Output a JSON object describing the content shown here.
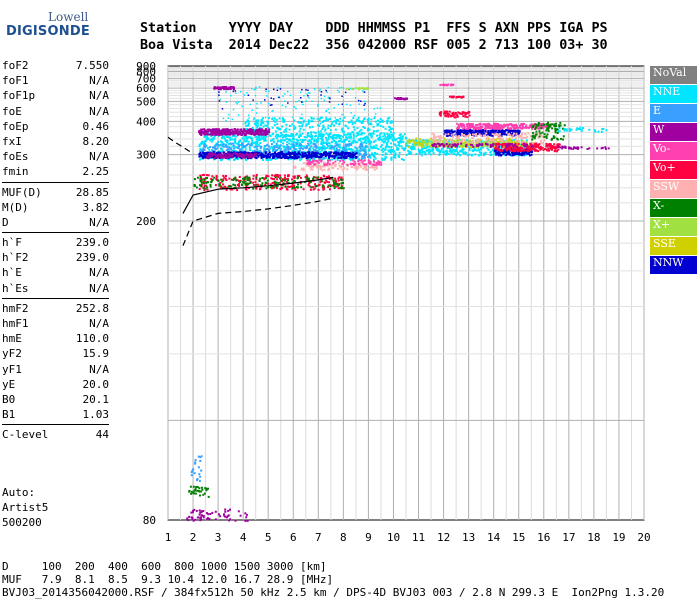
{
  "logo": {
    "line1": "Lowell",
    "line2": "DIGISONDE"
  },
  "header": {
    "line1": "Station    YYYY DAY    DDD HHMMSS P1  FFS S AXN PPS IGA PS",
    "line2": "Boa Vista  2014 Dec22  356 042000 RSF 005 2 713 100 03+ 30"
  },
  "params": {
    "group1": [
      {
        "name": "foF2",
        "value": "7.550"
      },
      {
        "name": "foF1",
        "value": "N/A"
      },
      {
        "name": "foF1p",
        "value": "N/A"
      },
      {
        "name": "foE",
        "value": "N/A"
      },
      {
        "name": "foEp",
        "value": "0.46"
      },
      {
        "name": "fxI",
        "value": "8.20"
      },
      {
        "name": "foEs",
        "value": "N/A"
      },
      {
        "name": "fmin",
        "value": "2.25"
      }
    ],
    "group2": [
      {
        "name": "MUF(D)",
        "value": "28.85"
      },
      {
        "name": "M(D)",
        "value": "3.82"
      },
      {
        "name": "D",
        "value": "N/A"
      }
    ],
    "group3": [
      {
        "name": "h`F",
        "value": "239.0"
      },
      {
        "name": "h`F2",
        "value": "239.0"
      },
      {
        "name": "h`E",
        "value": "N/A"
      },
      {
        "name": "h`Es",
        "value": "N/A"
      }
    ],
    "group4": [
      {
        "name": "hmF2",
        "value": "252.8"
      },
      {
        "name": "hmF1",
        "value": "N/A"
      },
      {
        "name": "hmE",
        "value": "110.0"
      },
      {
        "name": "yF2",
        "value": "15.9"
      },
      {
        "name": "yF1",
        "value": "N/A"
      },
      {
        "name": "yE",
        "value": "20.0"
      },
      {
        "name": "B0",
        "value": "20.1"
      },
      {
        "name": "B1",
        "value": "1.03"
      }
    ],
    "group5": [
      {
        "name": "C-level",
        "value": "44"
      }
    ]
  },
  "auto": {
    "line1": "Auto:",
    "line2": "Artist5",
    "line3": "500200"
  },
  "legend": [
    {
      "label": "NoVal",
      "color": "#808080"
    },
    {
      "label": "NNE",
      "color": "#00e5ff"
    },
    {
      "label": "E",
      "color": "#3aa0ff"
    },
    {
      "label": "W",
      "color": "#a000a0"
    },
    {
      "label": "Vo-",
      "color": "#ff40b0"
    },
    {
      "label": "Vo+",
      "color": "#ff0040"
    },
    {
      "label": "SSW",
      "color": "#ffb0b0"
    },
    {
      "label": "X-",
      "color": "#008000"
    },
    {
      "label": "X+",
      "color": "#a0e040"
    },
    {
      "label": "SSE",
      "color": "#d0d000"
    },
    {
      "label": "NNW",
      "color": "#0000d0"
    }
  ],
  "bottom": {
    "line1": "D     100  200  400  600  800 1000 1500 3000 [km]",
    "line2": "MUF   7.9  8.1  8.5  9.3 10.4 12.0 16.7 28.9 [MHz]",
    "line3": "BVJ03_2014356042000.RSF / 384fx512h 50 kHz 2.5 km / DPS-4D BVJ03 003 / 2.8 N 299.3 E  Ion2Png 1.3.20"
  },
  "chart_data": {
    "type": "scatter",
    "x_ticks": [
      1,
      2,
      3,
      4,
      5,
      6,
      7,
      8,
      9,
      10,
      11,
      12,
      13,
      14,
      15,
      16,
      17,
      18,
      19,
      20
    ],
    "y_ticks": [
      80,
      200,
      300,
      400,
      500,
      600,
      700,
      800,
      900
    ],
    "xlim": [
      1,
      20
    ],
    "ylim": [
      80,
      900
    ],
    "y_scale": "reciprocal",
    "grid": true,
    "legend_position": "right",
    "traces": [
      {
        "name": "virtual-height-trace",
        "x": [
          1.6,
          2.0,
          3.0,
          4.0,
          5.0,
          6.0,
          7.0,
          7.6
        ],
        "y": [
          208,
          230,
          238,
          240,
          243,
          247,
          252,
          256
        ]
      },
      {
        "name": "profile-upper",
        "x": [
          1.0,
          1.3,
          1.6,
          1.9
        ],
        "y": [
          345,
          330,
          318,
          306
        ]
      }
    ]
  }
}
